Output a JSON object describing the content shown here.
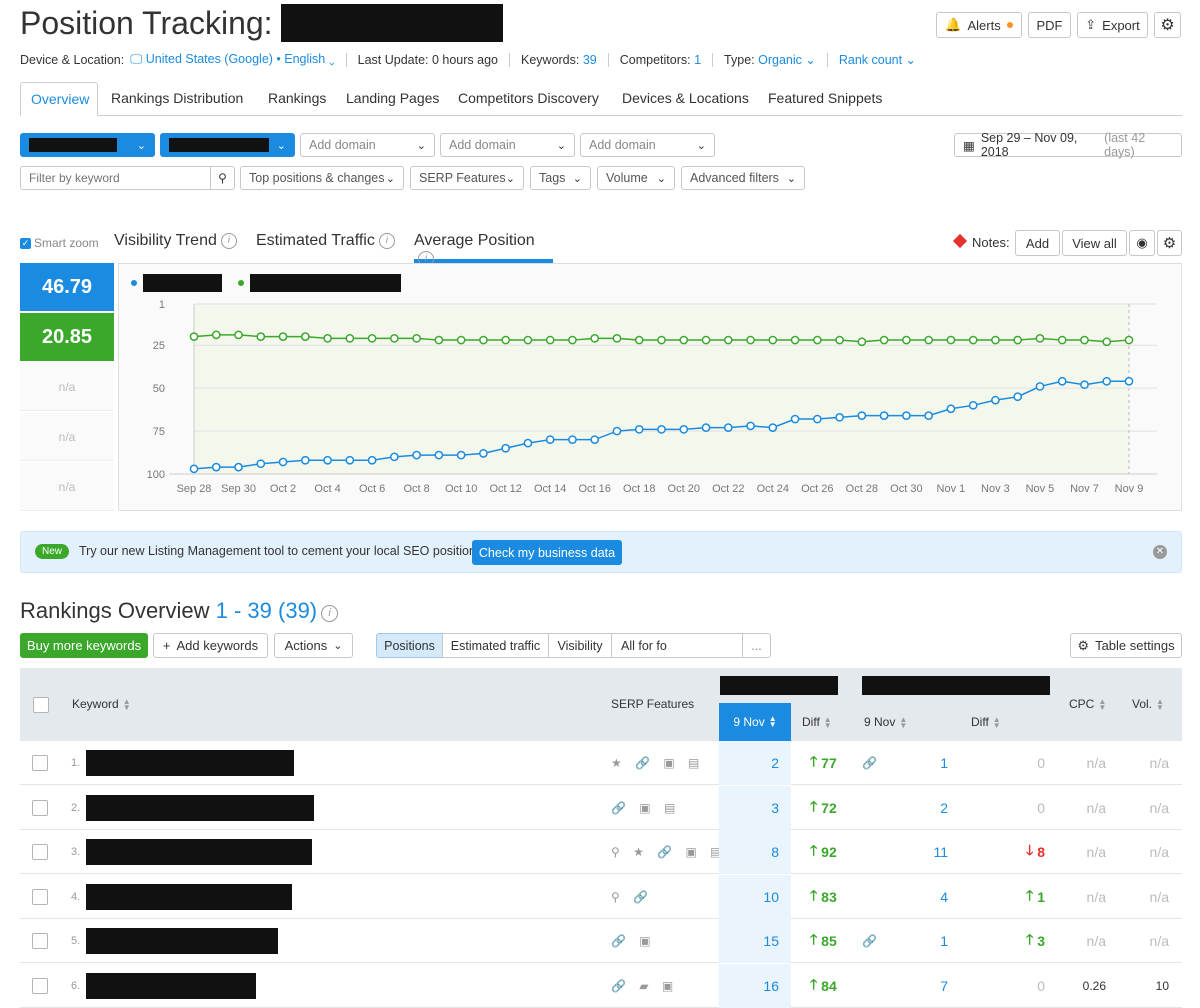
{
  "header": {
    "title": "Position Tracking:",
    "alerts": "Alerts",
    "pdf": "PDF",
    "export": "Export"
  },
  "infobar": {
    "device_label": "Device & Location:",
    "device_value": "United States (Google) • English",
    "last_update": "Last Update: 0 hours ago",
    "keywords_label": "Keywords:",
    "keywords_value": "39",
    "competitors_label": "Competitors:",
    "competitors_value": "1",
    "type_label": "Type:",
    "type_value": "Organic",
    "rank": "Rank count"
  },
  "tabs": [
    "Overview",
    "Rankings Distribution",
    "Rankings",
    "Landing Pages",
    "Competitors Discovery",
    "Devices & Locations",
    "Featured Snippets"
  ],
  "domains": {
    "add1": "Add domain",
    "add2": "Add domain",
    "add3": "Add domain"
  },
  "date_range": {
    "value": "Sep 29 – Nov 09, 2018",
    "hint": "(last 42 days)"
  },
  "filters": {
    "keyword_placeholder": "Filter by keyword",
    "top": "Top positions & changes",
    "serp": "SERP Features",
    "tags": "Tags",
    "volume": "Volume",
    "advanced": "Advanced filters"
  },
  "chart_tabs": {
    "smart_zoom": "Smart zoom",
    "visibility": "Visibility Trend",
    "traffic": "Estimated Traffic",
    "avg": "Average Position",
    "notes": "Notes:",
    "add": "Add",
    "view_all": "View all"
  },
  "metrics": {
    "m1": "46.79",
    "m2": "20.85",
    "na1": "n/a",
    "na2": "n/a",
    "na3": "n/a"
  },
  "colors": {
    "blue": "#1a8be0",
    "green": "#3ba82c",
    "red": "#e8312b"
  },
  "chart_data": {
    "type": "line",
    "x": [
      "Sep 28",
      "Sep 29",
      "Sep 30",
      "Oct 1",
      "Oct 2",
      "Oct 3",
      "Oct 4",
      "Oct 5",
      "Oct 6",
      "Oct 7",
      "Oct 8",
      "Oct 9",
      "Oct 10",
      "Oct 11",
      "Oct 12",
      "Oct 13",
      "Oct 14",
      "Oct 15",
      "Oct 16",
      "Oct 17",
      "Oct 18",
      "Oct 19",
      "Oct 20",
      "Oct 21",
      "Oct 22",
      "Oct 23",
      "Oct 24",
      "Oct 25",
      "Oct 26",
      "Oct 27",
      "Oct 28",
      "Oct 29",
      "Oct 30",
      "Oct 31",
      "Nov 1",
      "Nov 2",
      "Nov 3",
      "Nov 4",
      "Nov 5",
      "Nov 6",
      "Nov 7",
      "Nov 8",
      "Nov 9"
    ],
    "tick_labels": [
      "Sep 28",
      "Sep 30",
      "Oct 2",
      "Oct 4",
      "Oct 6",
      "Oct 8",
      "Oct 10",
      "Oct 12",
      "Oct 14",
      "Oct 16",
      "Oct 18",
      "Oct 20",
      "Oct 22",
      "Oct 24",
      "Oct 26",
      "Oct 28",
      "Oct 30",
      "Nov 1",
      "Nov 3",
      "Nov 5",
      "Nov 7",
      "Nov 9"
    ],
    "y_ticks": [
      "1",
      "25",
      "50",
      "75",
      "100"
    ],
    "ylim": [
      100,
      1
    ],
    "series": [
      {
        "color": "#3ba82c",
        "values": [
          20,
          19,
          19,
          20,
          20,
          20,
          21,
          21,
          21,
          21,
          21,
          22,
          22,
          22,
          22,
          22,
          22,
          22,
          21,
          21,
          22,
          22,
          22,
          22,
          22,
          22,
          22,
          22,
          22,
          22,
          23,
          22,
          22,
          22,
          22,
          22,
          22,
          22,
          21,
          22,
          22,
          23,
          22
        ]
      },
      {
        "color": "#1a8be0",
        "values": [
          97,
          96,
          96,
          94,
          93,
          92,
          92,
          92,
          92,
          90,
          89,
          89,
          89,
          88,
          85,
          82,
          80,
          80,
          80,
          75,
          74,
          74,
          74,
          73,
          73,
          72,
          73,
          68,
          68,
          67,
          66,
          66,
          66,
          66,
          62,
          60,
          57,
          55,
          49,
          46,
          48,
          46,
          46
        ]
      }
    ]
  },
  "banner": {
    "badge": "New",
    "text": "Try our new Listing Management tool to cement your local SEO positions!",
    "cta": "Check my business data"
  },
  "overview": {
    "title": "Rankings Overview",
    "range": "1 - 39 (39)",
    "buy": "Buy more keywords",
    "add": "Add keywords",
    "actions": "Actions",
    "seg_positions": "Positions",
    "seg_traffic": "Estimated traffic",
    "seg_visibility": "Visibility",
    "seg_all": "All for fo",
    "seg_more": "...",
    "table_settings": "Table settings"
  },
  "table": {
    "headers": {
      "keyword": "Keyword",
      "serp": "SERP Features",
      "date1": "9 Nov",
      "diff1": "Diff",
      "date2": "9 Nov",
      "diff2": "Diff",
      "cpc": "CPC",
      "vol": "Vol."
    },
    "rows": [
      {
        "n": "1.",
        "w": 208,
        "serp": "★ 🔗 ▣ ▤",
        "pos": "2",
        "diff": "77",
        "diffType": "up",
        "link": "🔗",
        "pos2": "1",
        "diff2": "0",
        "diff2Type": "zero",
        "cpc": "n/a",
        "vol": "n/a"
      },
      {
        "n": "2.",
        "w": 228,
        "serp": "🔗 ▣ ▤",
        "pos": "3",
        "diff": "72",
        "diffType": "up",
        "link": "",
        "pos2": "2",
        "diff2": "0",
        "diff2Type": "zero",
        "cpc": "n/a",
        "vol": "n/a"
      },
      {
        "n": "3.",
        "w": 226,
        "serp": "⚲ ★ 🔗 ▣ ▤",
        "pos": "8",
        "diff": "92",
        "diffType": "up",
        "link": "",
        "pos2": "11",
        "diff2": "8",
        "diff2Type": "down",
        "cpc": "n/a",
        "vol": "n/a"
      },
      {
        "n": "4.",
        "w": 206,
        "serp": "⚲ 🔗",
        "pos": "10",
        "diff": "83",
        "diffType": "up",
        "link": "",
        "pos2": "4",
        "diff2": "1",
        "diff2Type": "up",
        "cpc": "n/a",
        "vol": "n/a"
      },
      {
        "n": "5.",
        "w": 192,
        "serp": "🔗 ▣",
        "pos": "15",
        "diff": "85",
        "diffType": "up",
        "link": "🔗",
        "pos2": "1",
        "diff2": "3",
        "diff2Type": "up",
        "cpc": "n/a",
        "vol": "n/a"
      },
      {
        "n": "6.",
        "w": 170,
        "serp": "🔗 ▰ ▣",
        "pos": "16",
        "diff": "84",
        "diffType": "up",
        "link": "",
        "pos2": "7",
        "diff2": "0",
        "diff2Type": "zero",
        "cpc": "0.26",
        "vol": "10"
      }
    ]
  }
}
